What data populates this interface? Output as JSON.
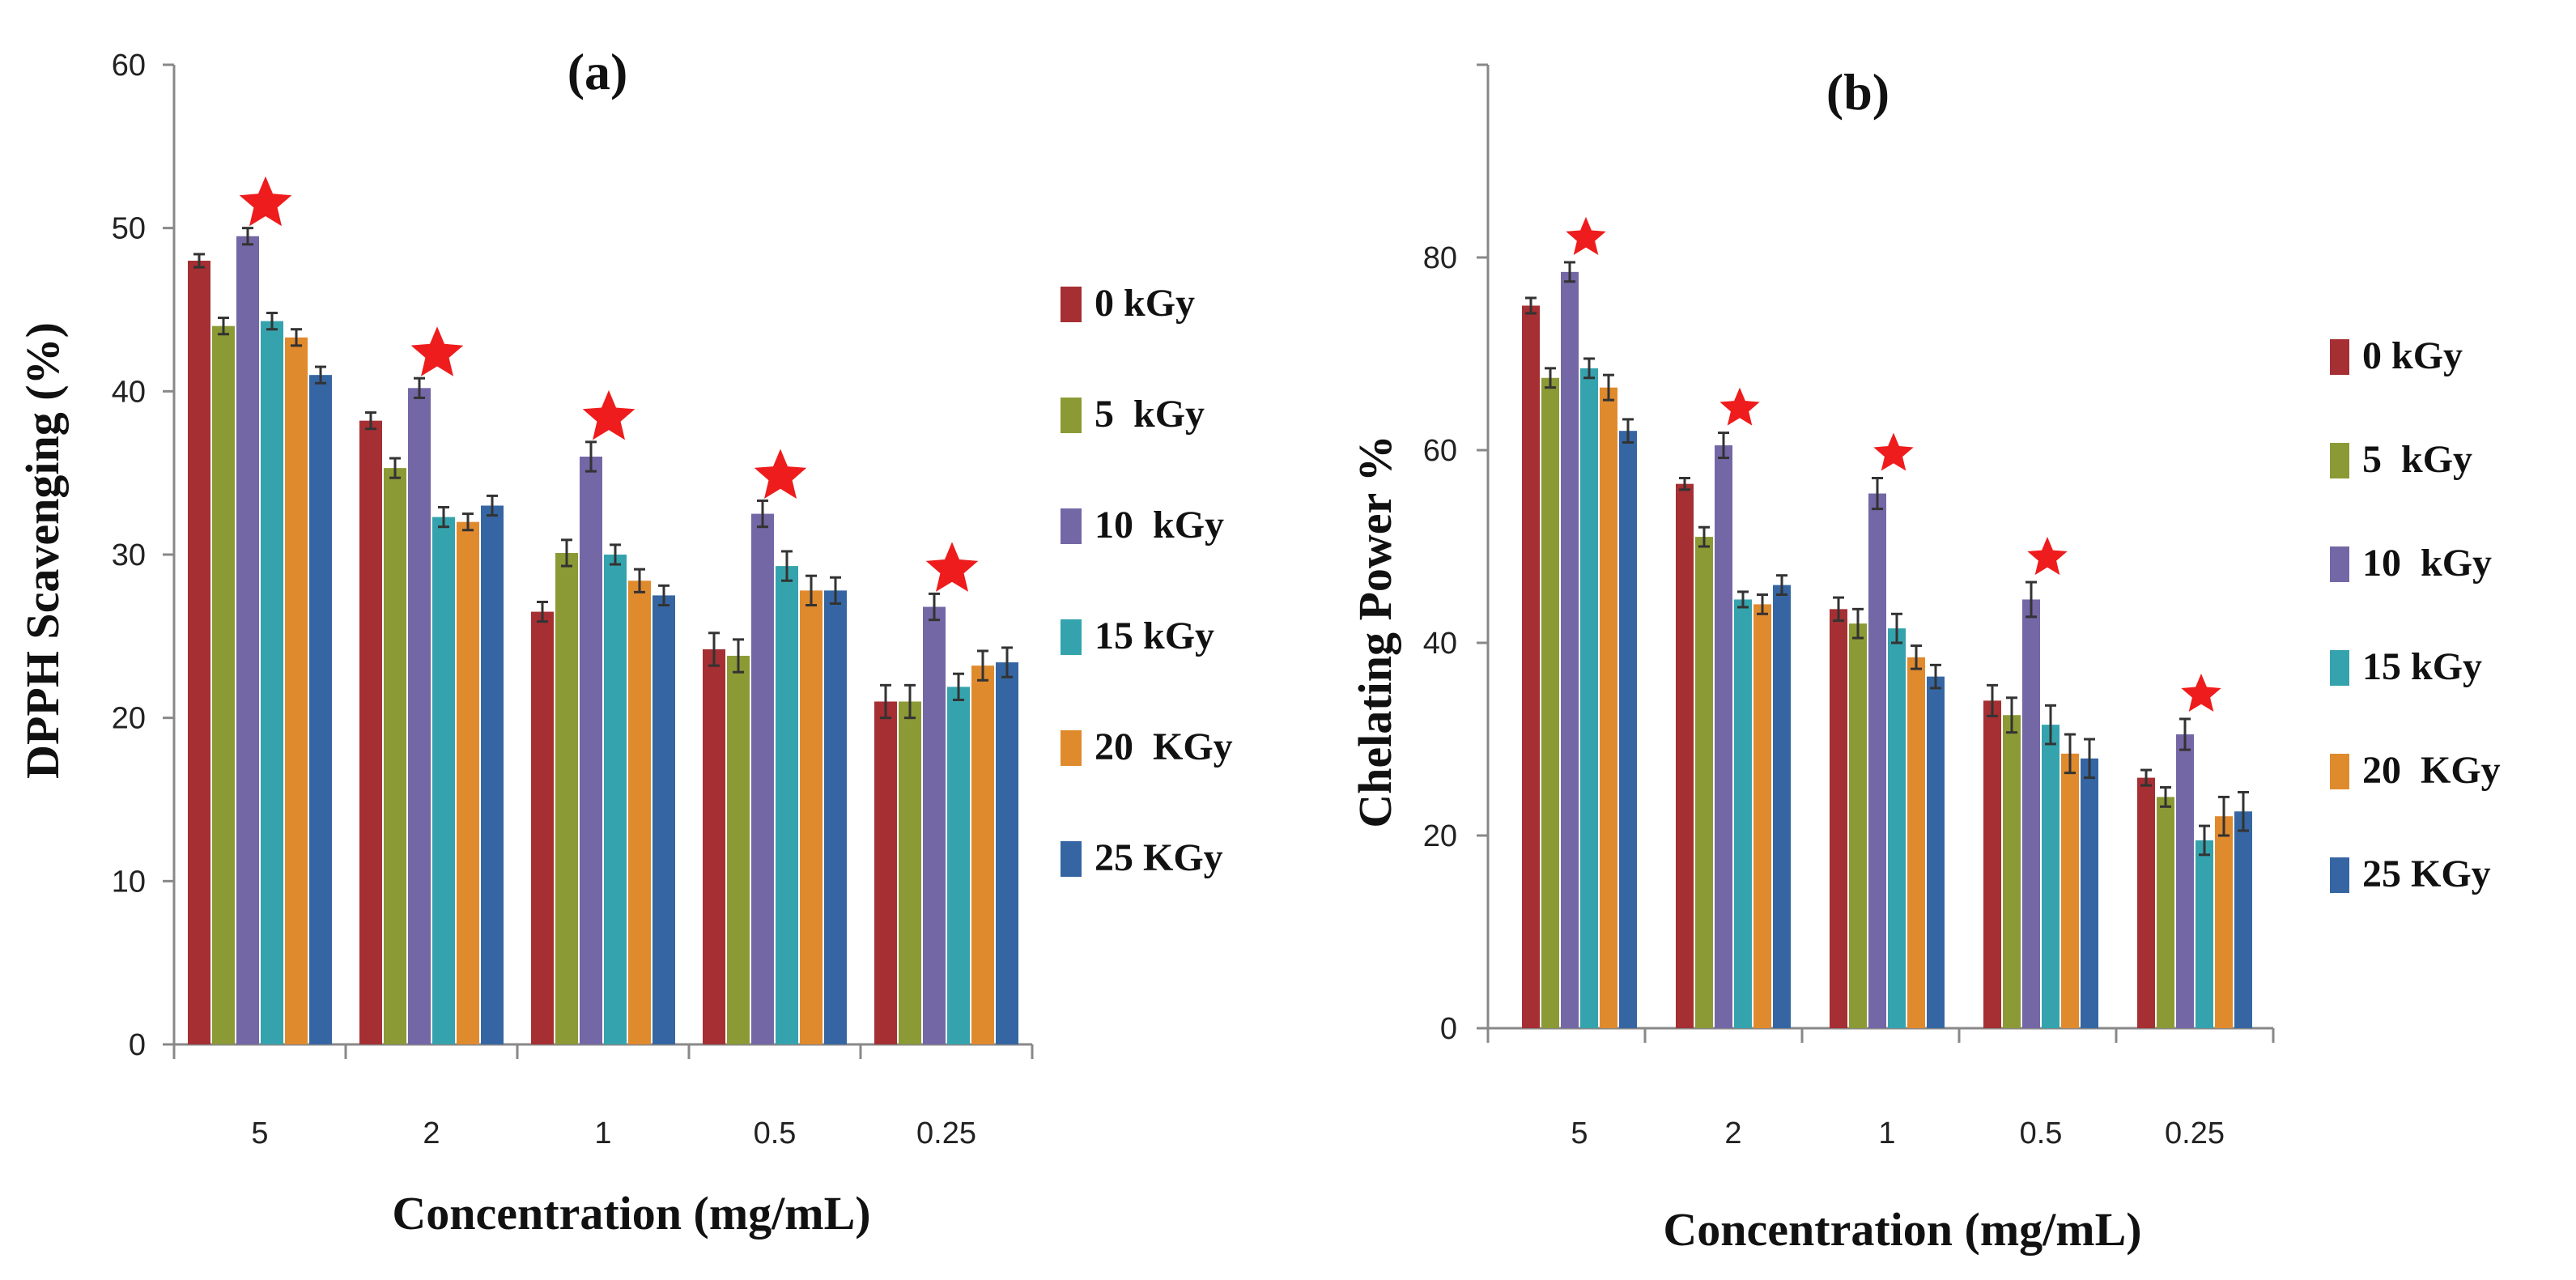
{
  "colors": {
    "0 kGy": "#A52F33",
    "5  kGy": "#8C9A35",
    "10  kGy": "#7467A6",
    "15 kGy": "#35A3AE",
    "20  KGy": "#E08A2E",
    "25 KGy": "#3566A3",
    "star": "#EE1C1C",
    "axis": "#888888",
    "errorbar": "#333333"
  },
  "chart_data": [
    {
      "type": "bar",
      "panel_label": "(a)",
      "title": "",
      "xlabel": "Concentration (mg/mL)",
      "ylabel": "DPPH Scavenging (%)",
      "ylim": [
        0,
        60
      ],
      "yticks": [
        0,
        10,
        20,
        30,
        40,
        50,
        60
      ],
      "categories": [
        "5",
        "2",
        "1",
        "0.5",
        "0.25"
      ],
      "series": [
        {
          "name": "0 kGy",
          "values": [
            48.0,
            38.2,
            26.5,
            24.2,
            21.0
          ],
          "errors": [
            0.4,
            0.5,
            0.6,
            1.0,
            1.0
          ]
        },
        {
          "name": "5  kGy",
          "values": [
            44.0,
            35.3,
            30.1,
            23.8,
            21.0
          ],
          "errors": [
            0.5,
            0.6,
            0.8,
            1.0,
            1.0
          ]
        },
        {
          "name": "10  kGy",
          "values": [
            49.5,
            40.2,
            36.0,
            32.5,
            26.8
          ],
          "errors": [
            0.5,
            0.6,
            0.9,
            0.8,
            0.8
          ]
        },
        {
          "name": "15 kGy",
          "values": [
            44.3,
            32.3,
            30.0,
            29.3,
            21.9
          ],
          "errors": [
            0.5,
            0.6,
            0.6,
            0.9,
            0.8
          ]
        },
        {
          "name": "20  KGy",
          "values": [
            43.3,
            32.0,
            28.4,
            27.8,
            23.2
          ],
          "errors": [
            0.5,
            0.5,
            0.7,
            0.9,
            0.9
          ]
        },
        {
          "name": "25 KGy",
          "values": [
            41.0,
            33.0,
            27.5,
            27.8,
            23.4
          ],
          "errors": [
            0.5,
            0.6,
            0.6,
            0.8,
            0.9
          ]
        }
      ],
      "significance_marker": "*"
    },
    {
      "type": "bar",
      "panel_label": "(b)",
      "title": "",
      "xlabel": "Concentration (mg/mL)",
      "ylabel": "Chelating Power %",
      "ylim": [
        0,
        100
      ],
      "yticks": [
        0,
        20,
        40,
        60,
        80
      ],
      "categories": [
        "5",
        "2",
        "1",
        "0.5",
        "0.25"
      ],
      "series": [
        {
          "name": "0 kGy",
          "values": [
            75.0,
            56.5,
            43.5,
            34.0,
            26.0
          ],
          "errors": [
            0.8,
            0.6,
            1.2,
            1.6,
            0.8
          ]
        },
        {
          "name": "5  kGy",
          "values": [
            67.5,
            51.0,
            42.0,
            32.5,
            24.0
          ],
          "errors": [
            1.0,
            1.0,
            1.5,
            1.8,
            1.0
          ]
        },
        {
          "name": "10  kGy",
          "values": [
            78.5,
            60.5,
            55.5,
            44.5,
            30.5
          ],
          "errors": [
            1.0,
            1.3,
            1.6,
            1.8,
            1.6
          ]
        },
        {
          "name": "15 kGy",
          "values": [
            68.5,
            44.5,
            41.5,
            31.5,
            19.5
          ],
          "errors": [
            1.0,
            0.8,
            1.5,
            2.0,
            1.5
          ]
        },
        {
          "name": "20  KGy",
          "values": [
            66.5,
            44.0,
            38.5,
            28.5,
            22.0
          ],
          "errors": [
            1.3,
            1.0,
            1.2,
            2.0,
            2.0
          ]
        },
        {
          "name": "25 KGy",
          "values": [
            62.0,
            46.0,
            36.5,
            28.0,
            22.5
          ],
          "errors": [
            1.2,
            1.0,
            1.2,
            2.0,
            2.0
          ]
        }
      ],
      "significance_marker": "*"
    }
  ]
}
